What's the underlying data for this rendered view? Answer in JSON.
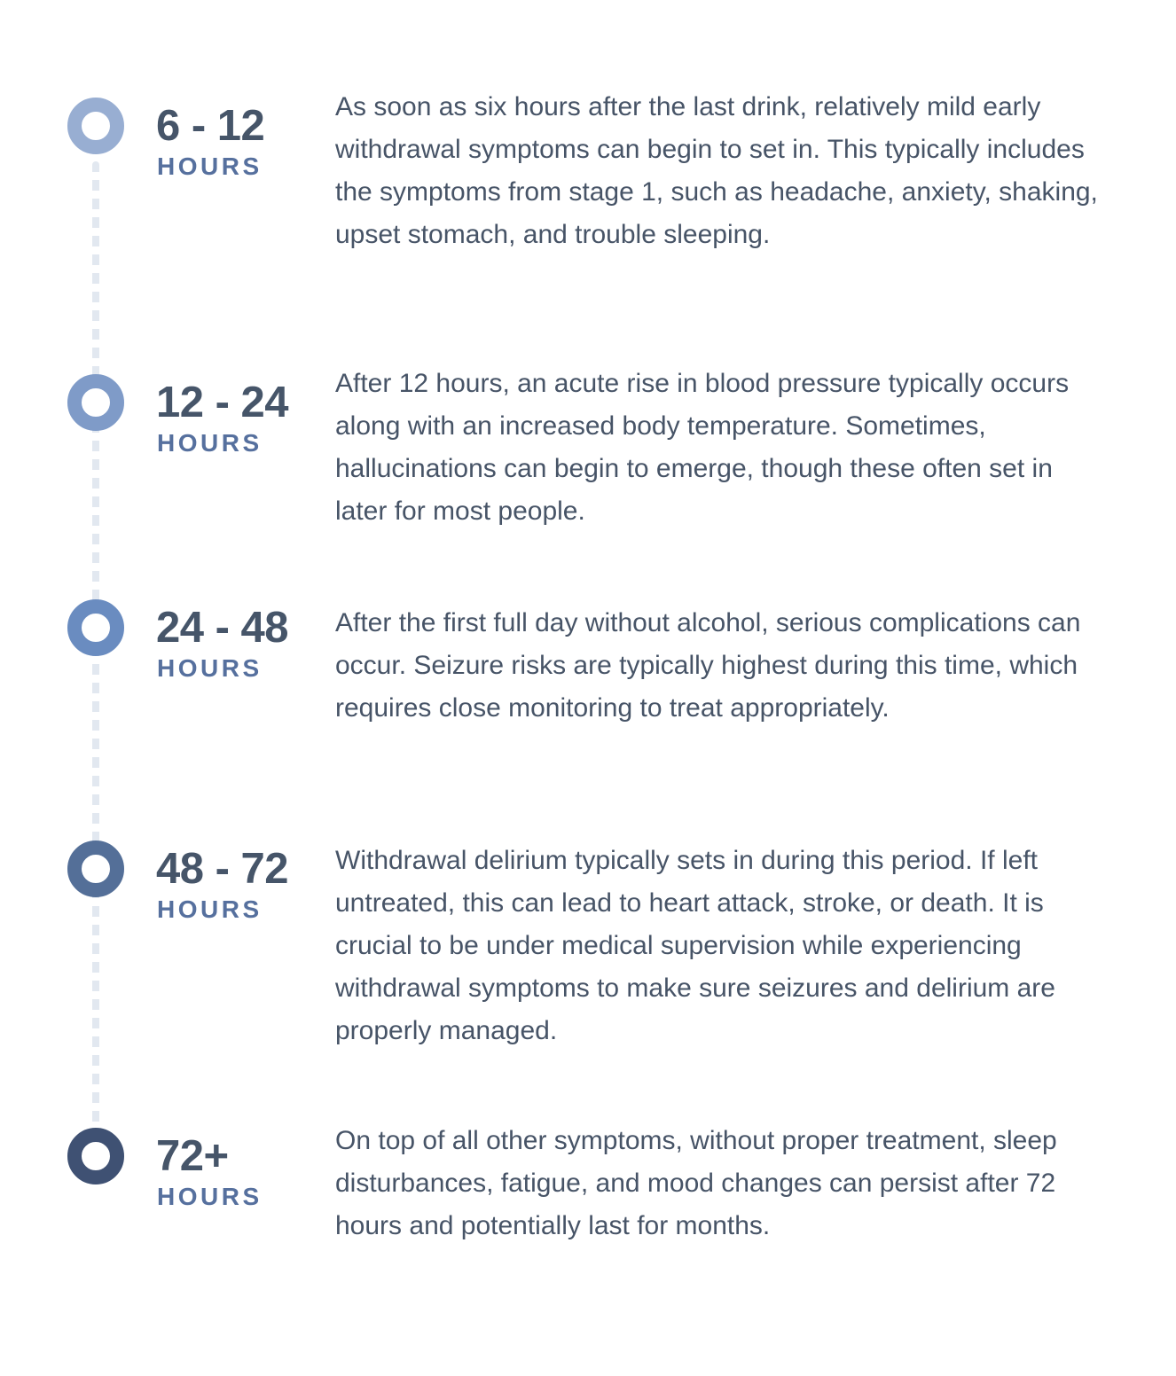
{
  "timeline": [
    {
      "range": "6 - 12",
      "unit": "HOURS",
      "color": "#98aed2",
      "text": "As soon as six hours after the last drink, relatively mild early withdrawal symptoms can begin to set in. This typically includes the symptoms from stage 1, such as headache, anxiety, shaking, upset stomach, and trouble sleeping."
    },
    {
      "range": "12 - 24",
      "unit": "HOURS",
      "color": "#7f9bc8",
      "text": "After 12 hours, an acute rise in blood pressure typically occurs along with an increased body temperature. Sometimes, hallucinations can begin to emerge, though these often set in later for most people."
    },
    {
      "range": "24 - 48",
      "unit": "HOURS",
      "color": "#6a8cc0",
      "text": "After the first full day without alcohol, serious complications can occur. Seizure risks are typically highest during this time, which requires close monitoring to treat appropriately."
    },
    {
      "range": "48 - 72",
      "unit": "HOURS",
      "color": "#546f98",
      "text": "Withdrawal delirium typically sets in during this period. If left untreated, this can lead to heart attack, stroke, or death. It is crucial to be under medical supervision while experiencing withdrawal symptoms to make sure seizures and delirium are properly managed."
    },
    {
      "range": "72+",
      "unit": "HOURS",
      "color": "#3f5173",
      "text": "On top of all other symptoms, without proper treatment, sleep disturbances, fatigue, and mood changes can persist after 72 hours and potentially last for months."
    }
  ]
}
